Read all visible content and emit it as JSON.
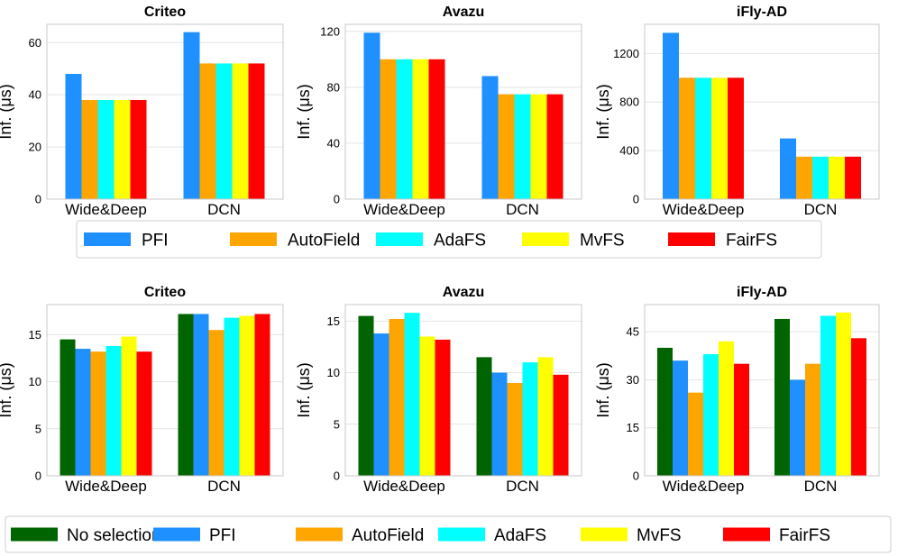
{
  "colors": {
    "No selection": "#006400",
    "PFI": "#1E90FF",
    "AutoField": "#FFA500",
    "AdaFS": "#00FFFF",
    "MvFS": "#FFFF00",
    "FairFS": "#FF0000"
  },
  "legends": [
    {
      "entries": [
        "PFI",
        "AutoField",
        "AdaFS",
        "MvFS",
        "FairFS"
      ]
    },
    {
      "entries": [
        "No selection",
        "PFI",
        "AutoField",
        "AdaFS",
        "MvFS",
        "FairFS"
      ]
    }
  ],
  "chart_data": [
    {
      "type": "bar",
      "title": "Criteo",
      "ylabel": "Inf. (μs)",
      "categories": [
        "Wide&Deep",
        "DCN"
      ],
      "ylim": [
        0,
        67
      ],
      "yticks": [
        0,
        20,
        40,
        60
      ],
      "series": [
        {
          "name": "PFI",
          "values": [
            48,
            64
          ]
        },
        {
          "name": "AutoField",
          "values": [
            38,
            52
          ]
        },
        {
          "name": "AdaFS",
          "values": [
            38,
            52
          ]
        },
        {
          "name": "MvFS",
          "values": [
            38,
            52
          ]
        },
        {
          "name": "FairFS",
          "values": [
            38,
            52
          ]
        }
      ]
    },
    {
      "type": "bar",
      "title": "Avazu",
      "ylabel": "Inf. (μs)",
      "categories": [
        "Wide&Deep",
        "DCN"
      ],
      "ylim": [
        0,
        125
      ],
      "yticks": [
        0,
        40,
        80,
        120
      ],
      "series": [
        {
          "name": "PFI",
          "values": [
            119,
            88
          ]
        },
        {
          "name": "AutoField",
          "values": [
            100,
            75
          ]
        },
        {
          "name": "AdaFS",
          "values": [
            100,
            75
          ]
        },
        {
          "name": "MvFS",
          "values": [
            100,
            75
          ]
        },
        {
          "name": "FairFS",
          "values": [
            100,
            75
          ]
        }
      ]
    },
    {
      "type": "bar",
      "title": "iFly-AD",
      "ylabel": "Inf. (μs)",
      "categories": [
        "Wide&Deep",
        "DCN"
      ],
      "ylim": [
        0,
        1440
      ],
      "yticks": [
        0,
        400,
        800,
        1200
      ],
      "series": [
        {
          "name": "PFI",
          "values": [
            1370,
            500
          ]
        },
        {
          "name": "AutoField",
          "values": [
            1000,
            350
          ]
        },
        {
          "name": "AdaFS",
          "values": [
            1000,
            350
          ]
        },
        {
          "name": "MvFS",
          "values": [
            1000,
            350
          ]
        },
        {
          "name": "FairFS",
          "values": [
            1000,
            350
          ]
        }
      ]
    },
    {
      "type": "bar",
      "title": "Criteo",
      "ylabel": "Inf. (μs)",
      "categories": [
        "Wide&Deep",
        "DCN"
      ],
      "ylim": [
        0,
        18.2
      ],
      "yticks": [
        0,
        5,
        10,
        15
      ],
      "series": [
        {
          "name": "No selection",
          "values": [
            14.5,
            17.2
          ]
        },
        {
          "name": "PFI",
          "values": [
            13.5,
            17.2
          ]
        },
        {
          "name": "AutoField",
          "values": [
            13.2,
            15.5
          ]
        },
        {
          "name": "AdaFS",
          "values": [
            13.8,
            16.8
          ]
        },
        {
          "name": "MvFS",
          "values": [
            14.8,
            17.0
          ]
        },
        {
          "name": "FairFS",
          "values": [
            13.2,
            17.2
          ]
        }
      ]
    },
    {
      "type": "bar",
      "title": "Avazu",
      "ylabel": "Inf. (μs)",
      "categories": [
        "Wide&Deep",
        "DCN"
      ],
      "ylim": [
        0,
        16.6
      ],
      "yticks": [
        0,
        5,
        10,
        15
      ],
      "series": [
        {
          "name": "No selection",
          "values": [
            15.5,
            11.5
          ]
        },
        {
          "name": "PFI",
          "values": [
            13.8,
            10.0
          ]
        },
        {
          "name": "AutoField",
          "values": [
            15.2,
            9.0
          ]
        },
        {
          "name": "AdaFS",
          "values": [
            15.8,
            11.0
          ]
        },
        {
          "name": "MvFS",
          "values": [
            13.5,
            11.5
          ]
        },
        {
          "name": "FairFS",
          "values": [
            13.2,
            9.8
          ]
        }
      ]
    },
    {
      "type": "bar",
      "title": "iFly-AD",
      "ylabel": "Inf. (μs)",
      "categories": [
        "Wide&Deep",
        "DCN"
      ],
      "ylim": [
        0,
        53.5
      ],
      "yticks": [
        0,
        15,
        30,
        45
      ],
      "series": [
        {
          "name": "No selection",
          "values": [
            40,
            49
          ]
        },
        {
          "name": "PFI",
          "values": [
            36,
            30
          ]
        },
        {
          "name": "AutoField",
          "values": [
            26,
            35
          ]
        },
        {
          "name": "AdaFS",
          "values": [
            38,
            50
          ]
        },
        {
          "name": "MvFS",
          "values": [
            42,
            51
          ]
        },
        {
          "name": "FairFS",
          "values": [
            35,
            43
          ]
        }
      ]
    }
  ]
}
